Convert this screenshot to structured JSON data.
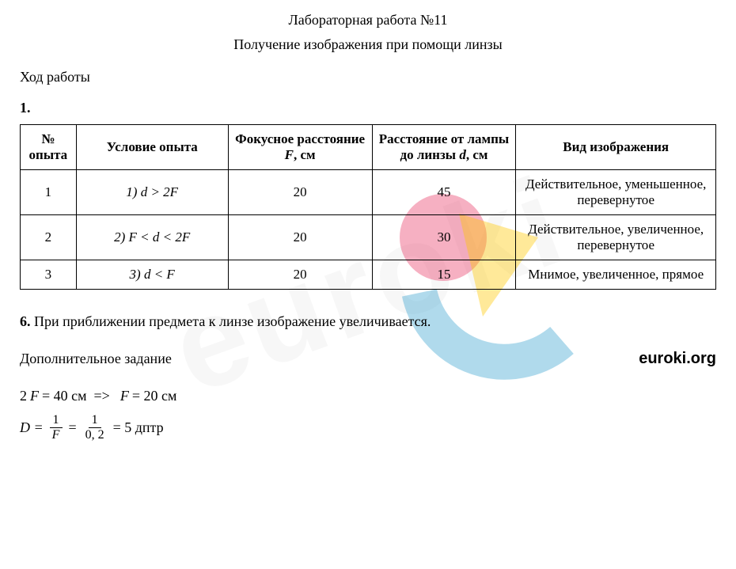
{
  "title": "Лабораторная работа №11",
  "subtitle": "Получение изображения при помощи линзы",
  "section_label": "Ход работы",
  "item1_num": "1.",
  "table": {
    "headers": {
      "num": "№ опыта",
      "condition": "Условие опыта",
      "focal_html": "Фокусное расстояние <span class=\"italic\">F</span>, см",
      "distance_html": "Расстояние от лампы до линзы <span class=\"italic\">d</span>, см",
      "image_type": "Вид изображения"
    },
    "rows": [
      {
        "num": "1",
        "condition_html": "<span class=\"italic\">1) d &gt; 2F</span>",
        "focal": "20",
        "distance": "45",
        "image_type": "Действительное, уменьшенное, перевернутое"
      },
      {
        "num": "2",
        "condition_html": "<span class=\"italic\">2) F &lt; d &lt; 2F</span>",
        "focal": "20",
        "distance": "30",
        "image_type": "Действительное, увеличенное, перевернутое"
      },
      {
        "num": "3",
        "condition_html": "<span class=\"italic\">3) d &lt; F</span>",
        "focal": "20",
        "distance": "15",
        "image_type": "Мнимое, увеличенное, прямое"
      }
    ]
  },
  "item6_num": "6.",
  "item6_text": " При приближении предмета к линзе изображение увеличивается.",
  "extra_label": "Дополнительное задание",
  "site": "euroki.org",
  "formula1_html": "2<span class=\"ital\">F</span> = 40 см&nbsp;&nbsp;=&gt;&nbsp;&nbsp;<span class=\"ital\">F</span> = 20 см",
  "formula2_prefix": "D =",
  "formula2_frac1_num": "1",
  "formula2_frac1_den": "F",
  "formula2_eq": "=",
  "formula2_frac2_num": "1",
  "formula2_frac2_den": "0, 2",
  "formula2_suffix": "= 5 дптр",
  "watermark_text": "euroki",
  "logo": {
    "circle_color": "rgba(230, 30, 80, 0.35)",
    "triangle_color": "rgba(255, 200, 0, 0.4)",
    "arc_color": "rgba(30, 150, 200, 0.35)"
  },
  "colors": {
    "text": "#000000",
    "background": "#ffffff",
    "border": "#000000"
  }
}
